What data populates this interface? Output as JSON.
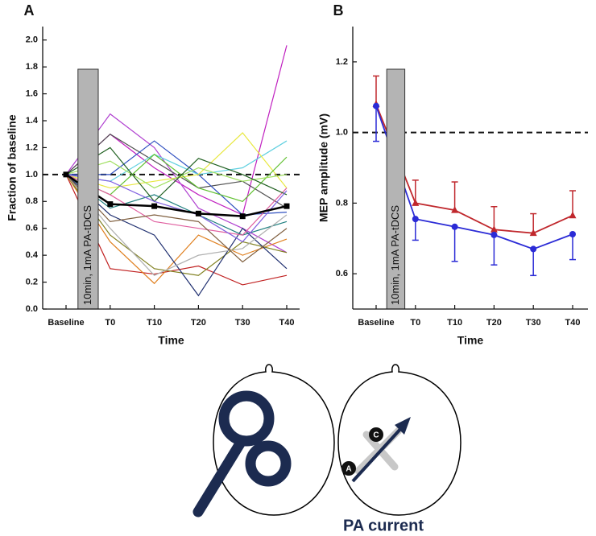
{
  "chart_data": [
    {
      "type": "line",
      "panel_label": "A",
      "ylabel": "Fraction of baseline",
      "xlabel": "Time",
      "annotation": "10min, 1mA PA-tDCS",
      "categories": [
        "Baseline",
        "T0",
        "T10",
        "T20",
        "T30",
        "T40"
      ],
      "ylim": [
        0,
        2.1
      ],
      "yticks": [
        {
          "value": 0,
          "label": "0.0"
        },
        0.2,
        0.4,
        0.6,
        0.8,
        {
          "value": 1,
          "label": "1.0"
        },
        1.2,
        1.4,
        1.6,
        1.8,
        {
          "value": 2,
          "label": "2.0"
        }
      ],
      "reference_line": 1,
      "series": [
        {
          "color": "#c020c0",
          "values": [
            1.0,
            1.3,
            1.05,
            0.85,
            0.7,
            1.96
          ]
        },
        {
          "color": "#b040d0",
          "values": [
            1.0,
            1.45,
            1.2,
            0.75,
            0.6,
            0.42
          ]
        },
        {
          "color": "#505050",
          "values": [
            1.0,
            1.3,
            1.1,
            0.9,
            0.95,
            0.75
          ]
        },
        {
          "color": "#3050c0",
          "values": [
            1.0,
            1.0,
            1.25,
            1.0,
            0.7,
            0.72
          ]
        },
        {
          "color": "#60d0e0",
          "values": [
            1.0,
            0.95,
            1.15,
            1.0,
            1.05,
            1.25
          ]
        },
        {
          "color": "#e8e840",
          "values": [
            1.0,
            0.9,
            0.95,
            1.0,
            1.31,
            0.9
          ]
        },
        {
          "color": "#60c030",
          "values": [
            1.0,
            0.85,
            1.15,
            0.9,
            0.8,
            1.13
          ]
        },
        {
          "color": "#c02020",
          "values": [
            1.0,
            0.3,
            0.26,
            0.32,
            0.18,
            0.25
          ]
        },
        {
          "color": "#e08020",
          "values": [
            1.0,
            0.5,
            0.19,
            0.55,
            0.4,
            0.52
          ]
        },
        {
          "color": "#808020",
          "values": [
            1.0,
            0.55,
            0.3,
            0.25,
            0.5,
            0.42
          ]
        },
        {
          "color": "#203070",
          "values": [
            1.0,
            0.7,
            0.55,
            0.1,
            0.6,
            0.3
          ]
        },
        {
          "color": "#208080",
          "values": [
            1.0,
            0.75,
            0.85,
            0.7,
            0.55,
            0.65
          ]
        },
        {
          "color": "#b0b0b0",
          "values": [
            1.0,
            0.6,
            0.25,
            0.4,
            0.45,
            0.7
          ]
        },
        {
          "color": "#e060a0",
          "values": [
            1.0,
            0.85,
            0.65,
            0.6,
            0.55,
            0.9
          ]
        },
        {
          "color": "#a0e060",
          "values": [
            1.0,
            1.1,
            0.9,
            1.05,
            0.95,
            1.0
          ]
        },
        {
          "color": "#806040",
          "values": [
            1.0,
            0.65,
            0.7,
            0.65,
            0.35,
            0.6
          ]
        },
        {
          "color": "#206020",
          "values": [
            1.0,
            1.2,
            0.8,
            1.12,
            1.0,
            0.85
          ]
        },
        {
          "color": "#8060e0",
          "values": [
            1.0,
            0.95,
            0.8,
            0.7,
            0.5,
            0.88
          ]
        },
        {
          "color": "#000000",
          "marker": "square",
          "width": 2.5,
          "values": [
            1.0,
            0.78,
            0.765,
            0.71,
            0.69,
            0.765
          ]
        }
      ]
    },
    {
      "type": "line",
      "panel_label": "B",
      "ylabel": "MEP amplitude (mV)",
      "xlabel": "Time",
      "annotation": "10min, 1mA PA-tDCS",
      "categories": [
        "Baseline",
        "T0",
        "T10",
        "T20",
        "T30",
        "T40"
      ],
      "ylim": [
        0.5,
        1.3
      ],
      "yticks": [
        0.6,
        0.8,
        {
          "value": 1,
          "label": "1.0"
        },
        1.2
      ],
      "reference_line": 1,
      "series": [
        {
          "color": "#c0282d",
          "marker": "triangle",
          "width": 1.8,
          "error_direction": "up",
          "values": [
            1.08,
            0.8,
            0.78,
            0.725,
            0.715,
            0.765
          ],
          "errors": [
            0.08,
            0.065,
            0.08,
            0.065,
            0.055,
            0.07
          ]
        },
        {
          "color": "#2b2bd6",
          "marker": "circle",
          "width": 1.8,
          "error_direction": "down",
          "values": [
            1.075,
            0.755,
            0.733,
            0.71,
            0.67,
            0.712
          ],
          "errors": [
            0.1,
            0.06,
            0.098,
            0.085,
            0.075,
            0.072
          ]
        }
      ]
    }
  ],
  "diagram": {
    "anode_label": "A",
    "cathode_label": "C",
    "caption": "PA current"
  }
}
